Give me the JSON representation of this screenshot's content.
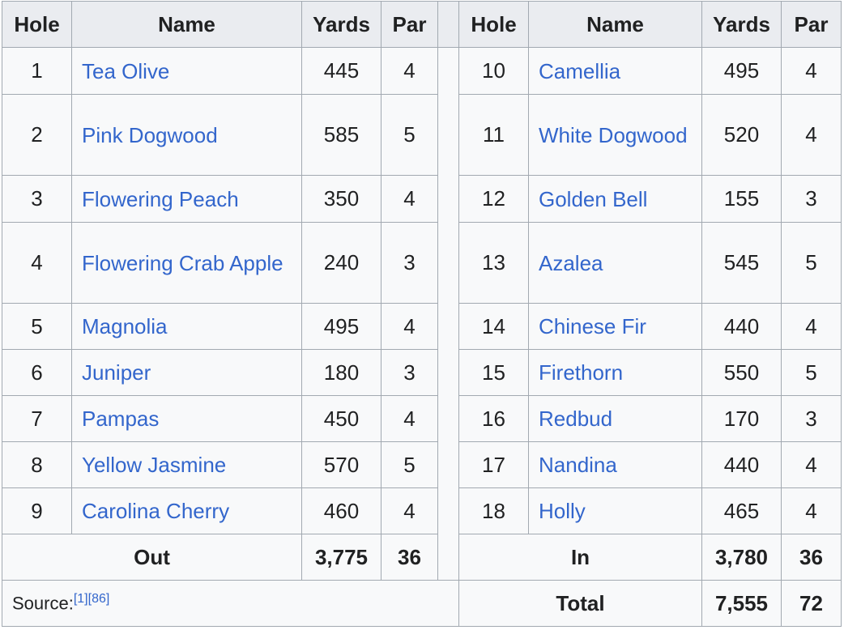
{
  "headers": {
    "hole": "Hole",
    "name": "Name",
    "yards": "Yards",
    "par": "Par"
  },
  "front_nine": [
    {
      "hole": "1",
      "name": "Tea Olive",
      "yards": "445",
      "par": "4"
    },
    {
      "hole": "2",
      "name": "Pink Dogwood",
      "yards": "585",
      "par": "5"
    },
    {
      "hole": "3",
      "name": "Flowering Peach",
      "yards": "350",
      "par": "4"
    },
    {
      "hole": "4",
      "name": "Flowering Crab Apple",
      "yards": "240",
      "par": "3"
    },
    {
      "hole": "5",
      "name": "Magnolia",
      "yards": "495",
      "par": "4"
    },
    {
      "hole": "6",
      "name": "Juniper",
      "yards": "180",
      "par": "3"
    },
    {
      "hole": "7",
      "name": "Pampas",
      "yards": "450",
      "par": "4"
    },
    {
      "hole": "8",
      "name": "Yellow Jasmine",
      "yards": "570",
      "par": "5"
    },
    {
      "hole": "9",
      "name": "Carolina Cherry",
      "yards": "460",
      "par": "4"
    }
  ],
  "back_nine": [
    {
      "hole": "10",
      "name": "Camellia",
      "yards": "495",
      "par": "4"
    },
    {
      "hole": "11",
      "name": "White Dogwood",
      "yards": "520",
      "par": "4"
    },
    {
      "hole": "12",
      "name": "Golden Bell",
      "yards": "155",
      "par": "3"
    },
    {
      "hole": "13",
      "name": "Azalea",
      "yards": "545",
      "par": "5"
    },
    {
      "hole": "14",
      "name": "Chinese Fir",
      "yards": "440",
      "par": "4"
    },
    {
      "hole": "15",
      "name": "Firethorn",
      "yards": "550",
      "par": "5"
    },
    {
      "hole": "16",
      "name": "Redbud",
      "yards": "170",
      "par": "3"
    },
    {
      "hole": "17",
      "name": "Nandina",
      "yards": "440",
      "par": "4"
    },
    {
      "hole": "18",
      "name": "Holly",
      "yards": "465",
      "par": "4"
    }
  ],
  "out_total": {
    "label": "Out",
    "yards": "3,775",
    "par": "36"
  },
  "in_total": {
    "label": "In",
    "yards": "3,780",
    "par": "36"
  },
  "grand_total": {
    "label": "Total",
    "yards": "7,555",
    "par": "72"
  },
  "source": {
    "label": "Source:",
    "refs": "[1][86]"
  },
  "colors": {
    "link": "#3366cc",
    "header_bg": "#eaecf0",
    "cell_bg": "#f8f9fa",
    "border": "#a2a9b1"
  }
}
